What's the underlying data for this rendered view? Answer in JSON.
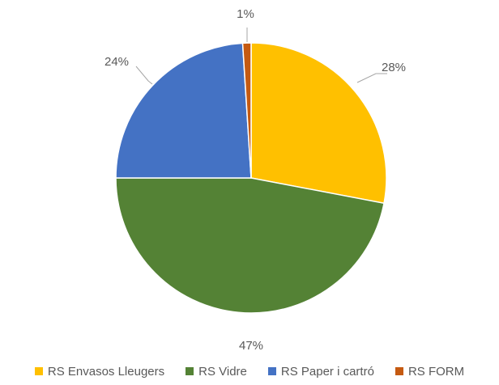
{
  "chart_data": {
    "type": "pie",
    "categories": [
      "RS Envasos Lleugers",
      "RS Vidre",
      "RS Paper i cartró",
      "RS FORM"
    ],
    "values": [
      28,
      47,
      24,
      1
    ],
    "data_labels": [
      "28%",
      "47%",
      "24%",
      "1%"
    ],
    "colors": [
      "#FFC000",
      "#548235",
      "#4472C4",
      "#C55A11"
    ],
    "legend_position": "bottom"
  }
}
